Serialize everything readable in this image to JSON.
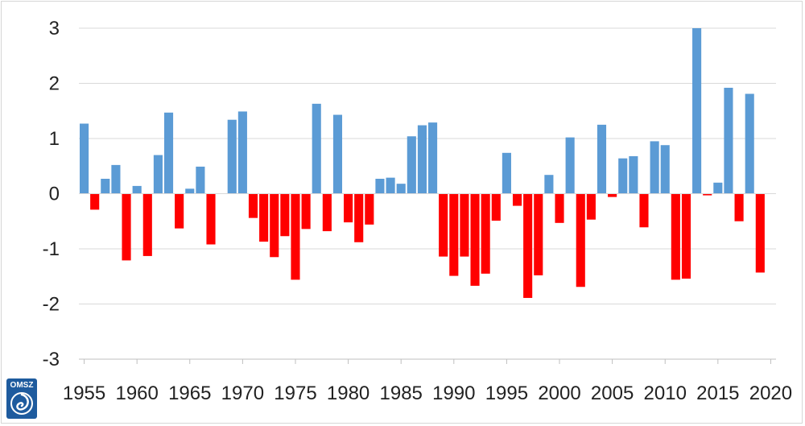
{
  "chart_data": {
    "type": "bar",
    "title": "",
    "xlabel": "",
    "ylabel": "",
    "x": [
      1955,
      1956,
      1957,
      1958,
      1959,
      1960,
      1961,
      1962,
      1963,
      1964,
      1965,
      1966,
      1967,
      1968,
      1969,
      1970,
      1971,
      1972,
      1973,
      1974,
      1975,
      1976,
      1977,
      1978,
      1979,
      1980,
      1981,
      1982,
      1983,
      1984,
      1985,
      1986,
      1987,
      1988,
      1989,
      1990,
      1991,
      1992,
      1993,
      1994,
      1995,
      1996,
      1997,
      1998,
      1999,
      2000,
      2001,
      2002,
      2003,
      2004,
      2005,
      2006,
      2007,
      2008,
      2009,
      2010,
      2011,
      2012,
      2013,
      2014,
      2015,
      2016,
      2017,
      2018,
      2019
    ],
    "values": [
      1.27,
      -0.29,
      0.27,
      0.52,
      -1.21,
      0.14,
      -1.13,
      0.7,
      1.47,
      -0.63,
      0.09,
      0.49,
      -0.92,
      0.0,
      1.34,
      1.49,
      -0.44,
      -0.87,
      -1.15,
      -0.77,
      -1.56,
      -0.64,
      1.63,
      -0.68,
      1.43,
      -0.52,
      -0.88,
      -0.56,
      0.27,
      0.29,
      0.18,
      1.04,
      1.24,
      1.29,
      -1.14,
      -1.49,
      -1.14,
      -1.67,
      -1.45,
      -0.49,
      0.74,
      -0.22,
      -1.89,
      -1.48,
      0.34,
      -0.53,
      1.02,
      -1.69,
      -0.47,
      1.25,
      -0.06,
      0.64,
      0.68,
      -0.61,
      0.95,
      0.88,
      -1.56,
      -1.54,
      3.0,
      -0.03,
      0.2,
      1.92,
      -0.5,
      1.81,
      -1.43
    ],
    "ylim": [
      -3,
      3
    ],
    "y_ticks": [
      "3",
      "2",
      "1",
      "0",
      "-1",
      "-2",
      "-3"
    ],
    "x_ticks": [
      "1955",
      "1960",
      "1965",
      "1970",
      "1975",
      "1980",
      "1985",
      "1990",
      "1995",
      "2000",
      "2005",
      "2010",
      "2015",
      "2020"
    ],
    "grid": true,
    "colors": {
      "positive": "#5b9bd5",
      "negative": "#ff0000",
      "grid": "#d9d9d9",
      "axis": "#bfbfbf"
    }
  },
  "logo": {
    "text": "OMSZ"
  }
}
